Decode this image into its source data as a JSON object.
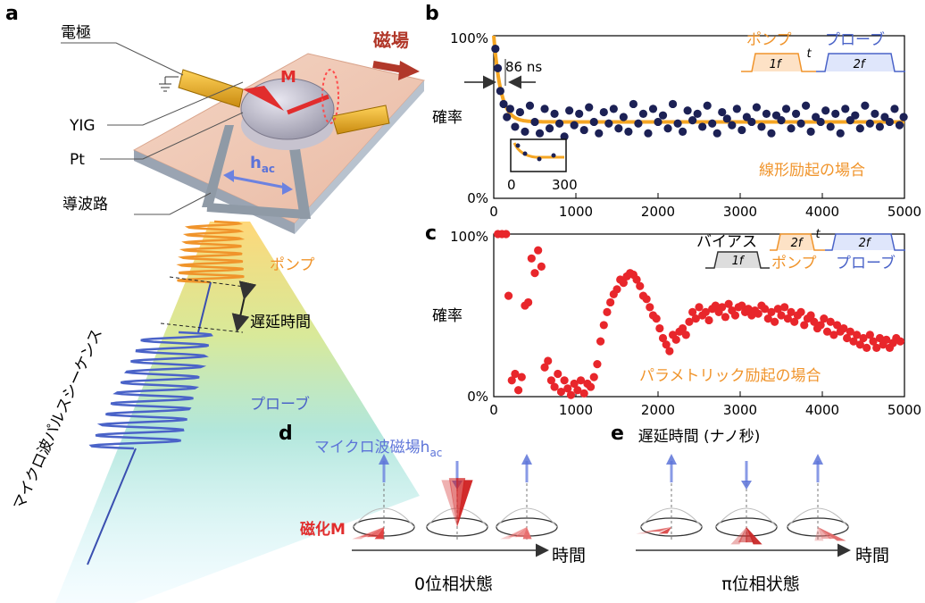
{
  "panel_a": {
    "letter": "a",
    "label_electrode": "電極",
    "label_yig": "YIG",
    "label_pt": "Pt",
    "label_waveguide": "導波路",
    "label_magnetic_field": "磁場",
    "label_m": "M",
    "label_hac": "h",
    "label_hac_sub": "ac",
    "label_pump": "ポンプ",
    "label_delay": "遅延時間",
    "label_probe": "プローブ",
    "label_sequence": "マイクロ波パルスシーケンス"
  },
  "panel_b": {
    "letter": "b",
    "ylabel": "確率",
    "annotation_time": "86 ns",
    "inset_ticks": [
      "0",
      "300"
    ],
    "note": "線形励起の場合",
    "legend_pump": "ポンプ",
    "legend_probe": "プローブ",
    "legend_pump_freq": "1f",
    "legend_probe_freq": "2f",
    "legend_t": "t"
  },
  "panel_c": {
    "letter": "c",
    "ylabel": "確率",
    "xlabel": "遅延時間 (ナノ秒)",
    "note": "パラメトリック励起の場合",
    "legend_bias": "バイアス",
    "legend_pump": "ポンプ",
    "legend_probe": "プローブ",
    "legend_bias_freq": "1f",
    "legend_pump_freq": "2f",
    "legend_probe_freq": "2f",
    "legend_t": "t"
  },
  "panel_d": {
    "letter": "d",
    "label_field": "マイクロ波磁場h",
    "label_field_sub": "ac",
    "label_magnetization": "磁化M",
    "label_time": "時間",
    "caption": "0位相状態"
  },
  "panel_e": {
    "letter": "e",
    "label_time": "時間",
    "caption": "π位相状態"
  },
  "colors": {
    "orange": "#f5a623",
    "probe_blue": "#4a63c8",
    "dot_navy": "#1c2155",
    "dot_red": "#e8262b",
    "dark_red": "#b71c1c"
  },
  "chart_data": [
    {
      "type": "scatter",
      "panel": "b",
      "xlim": [
        0,
        5000
      ],
      "ylim": [
        0,
        100
      ],
      "xticks": [
        "0",
        "1000",
        "2000",
        "3000",
        "4000",
        "5000"
      ],
      "yticks": [
        "0%",
        "100%"
      ],
      "fit": {
        "model": "exponential",
        "start": 100,
        "plateau": 47,
        "tau_ns": 86
      },
      "x": [
        20,
        50,
        80,
        120,
        160,
        200,
        260,
        320,
        380,
        440,
        500,
        560,
        620,
        680,
        740,
        800,
        860,
        920,
        980,
        1040,
        1100,
        1160,
        1220,
        1280,
        1340,
        1400,
        1460,
        1520,
        1580,
        1640,
        1700,
        1760,
        1820,
        1880,
        1940,
        2000,
        2060,
        2120,
        2180,
        2240,
        2300,
        2360,
        2420,
        2480,
        2540,
        2600,
        2660,
        2720,
        2780,
        2840,
        2900,
        2960,
        3020,
        3080,
        3140,
        3200,
        3260,
        3320,
        3380,
        3440,
        3500,
        3560,
        3620,
        3680,
        3740,
        3800,
        3860,
        3920,
        3980,
        4040,
        4100,
        4160,
        4220,
        4280,
        4340,
        4400,
        4460,
        4520,
        4580,
        4640,
        4700,
        4760,
        4820,
        4880,
        4940,
        4990
      ],
      "y": [
        92,
        80,
        66,
        58,
        50,
        55,
        44,
        53,
        41,
        57,
        47,
        40,
        55,
        43,
        52,
        46,
        38,
        54,
        45,
        52,
        42,
        56,
        47,
        40,
        53,
        46,
        55,
        43,
        50,
        41,
        58,
        46,
        52,
        40,
        55,
        47,
        51,
        43,
        58,
        46,
        41,
        54,
        48,
        52,
        44,
        57,
        46,
        40,
        53,
        49,
        45,
        55,
        42,
        50,
        47,
        56,
        44,
        52,
        40,
        51,
        48,
        55,
        43,
        52,
        46,
        57,
        41,
        50,
        47,
        54,
        44,
        52,
        40,
        55,
        48,
        51,
        43,
        57,
        46,
        52,
        44,
        50,
        47,
        55,
        45,
        50
      ]
    },
    {
      "type": "scatter",
      "panel": "c",
      "xlim": [
        0,
        5000
      ],
      "ylim": [
        0,
        100
      ],
      "xticks": [
        "0",
        "1000",
        "2000",
        "3000",
        "4000",
        "5000"
      ],
      "yticks": [
        "0%",
        "100%"
      ],
      "x": [
        50,
        100,
        150,
        180,
        220,
        260,
        300,
        340,
        380,
        420,
        460,
        500,
        540,
        580,
        620,
        660,
        700,
        740,
        780,
        820,
        860,
        900,
        940,
        980,
        1020,
        1060,
        1100,
        1140,
        1180,
        1220,
        1260,
        1300,
        1340,
        1380,
        1420,
        1460,
        1500,
        1540,
        1580,
        1620,
        1660,
        1700,
        1740,
        1780,
        1820,
        1860,
        1900,
        1940,
        1980,
        2020,
        2060,
        2100,
        2140,
        2180,
        2220,
        2260,
        2300,
        2340,
        2380,
        2420,
        2460,
        2500,
        2540,
        2580,
        2620,
        2660,
        2700,
        2740,
        2780,
        2820,
        2860,
        2900,
        2940,
        2980,
        3020,
        3060,
        3100,
        3140,
        3180,
        3220,
        3260,
        3300,
        3340,
        3380,
        3420,
        3460,
        3500,
        3540,
        3580,
        3620,
        3660,
        3700,
        3740,
        3780,
        3820,
        3860,
        3900,
        3940,
        3980,
        4020,
        4060,
        4100,
        4140,
        4180,
        4220,
        4260,
        4300,
        4340,
        4380,
        4420,
        4460,
        4500,
        4540,
        4580,
        4620,
        4660,
        4700,
        4740,
        4780,
        4820,
        4860,
        4900,
        4950
      ],
      "y": [
        100,
        100,
        100,
        62,
        10,
        14,
        4,
        12,
        56,
        58,
        85,
        76,
        90,
        80,
        18,
        22,
        10,
        6,
        14,
        3,
        10,
        5,
        1,
        8,
        4,
        10,
        2,
        8,
        6,
        12,
        20,
        34,
        44,
        52,
        58,
        63,
        66,
        72,
        70,
        74,
        76,
        75,
        72,
        68,
        62,
        60,
        55,
        50,
        48,
        42,
        36,
        32,
        28,
        38,
        35,
        40,
        42,
        38,
        46,
        52,
        48,
        55,
        50,
        52,
        47,
        54,
        56,
        52,
        55,
        49,
        57,
        53,
        50,
        55,
        56,
        52,
        54,
        50,
        53,
        51,
        56,
        54,
        48,
        52,
        46,
        54,
        50,
        55,
        48,
        52,
        46,
        50,
        52,
        44,
        48,
        50,
        46,
        42,
        44,
        48,
        40,
        46,
        38,
        44,
        40,
        42,
        36,
        40,
        34,
        38,
        32,
        36,
        30,
        38,
        34,
        30,
        36,
        32,
        35,
        30,
        33,
        36,
        34
      ]
    }
  ]
}
